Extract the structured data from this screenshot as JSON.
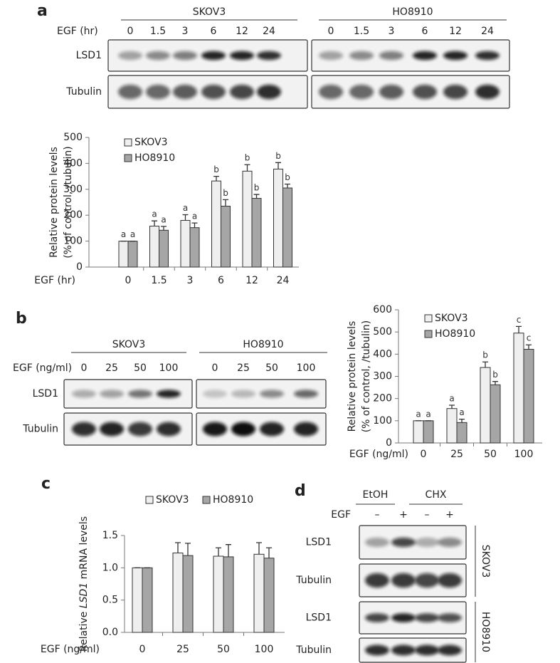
{
  "panel_a": {
    "label": "a",
    "treatment": "EGF (hr)",
    "rows": [
      "LSD1",
      "Tubulin"
    ],
    "groups": [
      {
        "name": "SKOV3",
        "lanes": [
          "0",
          "1.5",
          "3",
          "6",
          "12",
          "24"
        ]
      },
      {
        "name": "HO8910",
        "lanes": [
          "0",
          "1.5",
          "3",
          "6",
          "12",
          "24"
        ]
      }
    ]
  },
  "panel_b": {
    "label": "b",
    "treatment": "EGF (ng/ml)",
    "rows": [
      "LSD1",
      "Tubulin"
    ],
    "groups": [
      {
        "name": "SKOV3",
        "lanes": [
          "0",
          "25",
          "50",
          "100"
        ]
      },
      {
        "name": "HO8910",
        "lanes": [
          "0",
          "25",
          "50",
          "100"
        ]
      }
    ]
  },
  "panel_c": {
    "label": "c"
  },
  "panel_d": {
    "label": "d",
    "groups": [
      "EtOH",
      "CHX"
    ],
    "treatment": "EGF",
    "lanes": [
      "–",
      "+",
      "–",
      "+"
    ],
    "cells": [
      {
        "name": "SKOV3",
        "rows": [
          "LSD1",
          "Tubulin"
        ]
      },
      {
        "name": "HO8910",
        "rows": [
          "LSD1",
          "Tubulin"
        ]
      }
    ]
  },
  "chart_data": [
    {
      "type": "bar",
      "y_label": [
        "Relative protein levels",
        "(% of control, /tubulin)"
      ],
      "x_label": "EGF (hr)",
      "categories": [
        "0",
        "1.5",
        "3",
        "6",
        "12",
        "24"
      ],
      "ylim": [
        0,
        500
      ],
      "yticks": [
        0,
        100,
        200,
        300,
        400,
        500
      ],
      "legend": "top-left",
      "series": [
        {
          "name": "SKOV3",
          "color": "#efefef",
          "values": [
            100,
            158,
            180,
            332,
            370,
            378
          ],
          "errors": [
            0,
            20,
            22,
            18,
            25,
            25
          ],
          "annotations": [
            "a",
            "a",
            "a",
            "b",
            "b",
            "b"
          ]
        },
        {
          "name": "HO8910",
          "color": "#a6a6a6",
          "values": [
            100,
            142,
            152,
            235,
            265,
            305
          ],
          "errors": [
            0,
            15,
            18,
            25,
            15,
            15
          ],
          "annotations": [
            "a",
            "a",
            "a",
            "b",
            "b",
            "b"
          ]
        }
      ]
    },
    {
      "type": "bar",
      "y_label": [
        "Relative protein levels",
        "(% of control, /tubulin)"
      ],
      "x_label": "EGF (ng/ml)",
      "categories": [
        "0",
        "25",
        "50",
        "100"
      ],
      "ylim": [
        0,
        600
      ],
      "yticks": [
        0,
        100,
        200,
        300,
        400,
        500,
        600
      ],
      "legend": "top-left",
      "series": [
        {
          "name": "SKOV3",
          "color": "#efefef",
          "values": [
            100,
            155,
            340,
            495
          ],
          "errors": [
            0,
            15,
            25,
            30
          ],
          "annotations": [
            "a",
            "a",
            "b",
            "c"
          ]
        },
        {
          "name": "HO8910",
          "color": "#a6a6a6",
          "values": [
            100,
            92,
            262,
            422
          ],
          "errors": [
            0,
            15,
            15,
            20
          ],
          "annotations": [
            "a",
            "a",
            "b",
            "c"
          ]
        }
      ]
    },
    {
      "type": "bar",
      "y_label_parts": [
        "Relative ",
        "LSD1",
        " mRNA levels"
      ],
      "y_label_italic": 1,
      "x_label": "EGF (ng/ml)",
      "categories": [
        "0",
        "25",
        "50",
        "100"
      ],
      "ylim": [
        0,
        1.5
      ],
      "yticks": [
        {
          "value": 0,
          "label": "0.0"
        },
        {
          "value": 0.5,
          "label": "0.5"
        },
        {
          "value": 1,
          "label": "1.0"
        },
        {
          "value": 1.5,
          "label": "1.5"
        }
      ],
      "legend": "top",
      "series": [
        {
          "name": "SKOV3",
          "color": "#efefef",
          "values": [
            1.0,
            1.23,
            1.18,
            1.21
          ],
          "errors": [
            0,
            0.16,
            0.13,
            0.18
          ]
        },
        {
          "name": "HO8910",
          "color": "#a6a6a6",
          "values": [
            1.0,
            1.19,
            1.17,
            1.15
          ],
          "errors": [
            0,
            0.19,
            0.19,
            0.16
          ]
        }
      ]
    }
  ]
}
